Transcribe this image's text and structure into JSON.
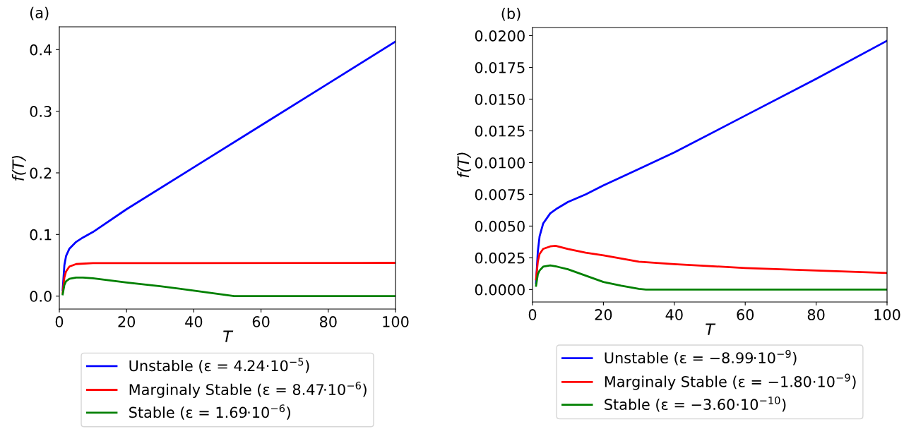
{
  "chart_data": [
    {
      "type": "line",
      "title": "(a)",
      "xlabel": "T",
      "ylabel": "f(T)",
      "xlim": [
        0,
        100
      ],
      "xticks": [
        0,
        20,
        40,
        60,
        80,
        100
      ],
      "ylim": [
        -0.021,
        0.437
      ],
      "yticks": [
        {
          "value": 0,
          "label": "0.0"
        },
        0.1,
        0.2,
        0.3,
        0.4
      ],
      "grid": false,
      "legend": "bottom",
      "series": [
        {
          "name": "Unstable (ε = 4.24·10$^{−5}$)",
          "color": "#0000ff",
          "x": [
            1,
            1.5,
            2,
            3,
            5,
            7,
            10,
            20,
            40,
            60,
            80,
            100
          ],
          "values": [
            0.01,
            0.05,
            0.065,
            0.077,
            0.088,
            0.095,
            0.104,
            0.141,
            0.209,
            0.277,
            0.345,
            0.413
          ]
        },
        {
          "name": "Marginaly Stable (ε = 8.47·10$^{−6}$)",
          "color": "#ff0000",
          "x": [
            1,
            1.5,
            2,
            3,
            5,
            10,
            100
          ],
          "values": [
            0.005,
            0.03,
            0.04,
            0.048,
            0.052,
            0.0535,
            0.054
          ]
        },
        {
          "name": "Stable (ε = 1.69·10$^{−6}$)",
          "color": "#008000",
          "x": [
            1,
            1.5,
            2,
            3,
            5,
            7,
            10,
            20,
            30,
            40,
            52,
            60,
            100
          ],
          "values": [
            0.003,
            0.018,
            0.024,
            0.028,
            0.03,
            0.0302,
            0.029,
            0.022,
            0.016,
            0.009,
            0,
            0,
            0
          ]
        }
      ]
    },
    {
      "type": "line",
      "title": "(b)",
      "xlabel": "T",
      "ylabel": "f(T)",
      "xlim": [
        0,
        100
      ],
      "xticks": [
        0,
        20,
        40,
        60,
        80,
        100
      ],
      "ylim": [
        -0.00098,
        0.02064
      ],
      "yticks": [
        {
          "value": 0,
          "label": "0.0000"
        },
        {
          "value": 0.0025,
          "label": "0.0025"
        },
        {
          "value": 0.005,
          "label": "0.0050"
        },
        {
          "value": 0.0075,
          "label": "0.0075"
        },
        {
          "value": 0.01,
          "label": "0.0100"
        },
        {
          "value": 0.0125,
          "label": "0.0125"
        },
        {
          "value": 0.015,
          "label": "0.0150"
        },
        {
          "value": 0.0175,
          "label": "0.0175"
        },
        {
          "value": 0.02,
          "label": "0.0200"
        }
      ],
      "grid": false,
      "legend": "bottom",
      "series": [
        {
          "name": "Unstable (ε = −8.99·10$^{−9}$)",
          "color": "#0000ff",
          "x": [
            1,
            1.5,
            2,
            3,
            5,
            7,
            10,
            15,
            20,
            30,
            40,
            60,
            80,
            100
          ],
          "values": [
            0.0005,
            0.003,
            0.0042,
            0.0052,
            0.006,
            0.0064,
            0.0069,
            0.0075,
            0.0082,
            0.0095,
            0.0108,
            0.0137,
            0.0166,
            0.0196
          ]
        },
        {
          "name": "Marginaly Stable (ε = −1.80·10$^{−9}$)",
          "color": "#ff0000",
          "x": [
            1,
            1.5,
            2,
            3,
            5,
            6.5,
            10,
            15,
            20,
            30,
            40,
            50,
            60,
            80,
            100
          ],
          "values": [
            0.0008,
            0.0022,
            0.0028,
            0.0032,
            0.0034,
            0.00345,
            0.0032,
            0.0029,
            0.0027,
            0.0022,
            0.002,
            0.00185,
            0.0017,
            0.0015,
            0.0013
          ]
        },
        {
          "name": "Stable (ε = −3.60·10$^{−10}$)",
          "color": "#008000",
          "x": [
            1,
            1.5,
            2,
            3,
            5,
            7,
            10,
            15,
            20,
            25,
            30,
            32,
            100
          ],
          "values": [
            0.0003,
            0.0012,
            0.0015,
            0.0018,
            0.0019,
            0.0018,
            0.0016,
            0.0011,
            0.0006,
            0.0003,
            5e-05,
            0,
            0
          ]
        }
      ]
    }
  ]
}
